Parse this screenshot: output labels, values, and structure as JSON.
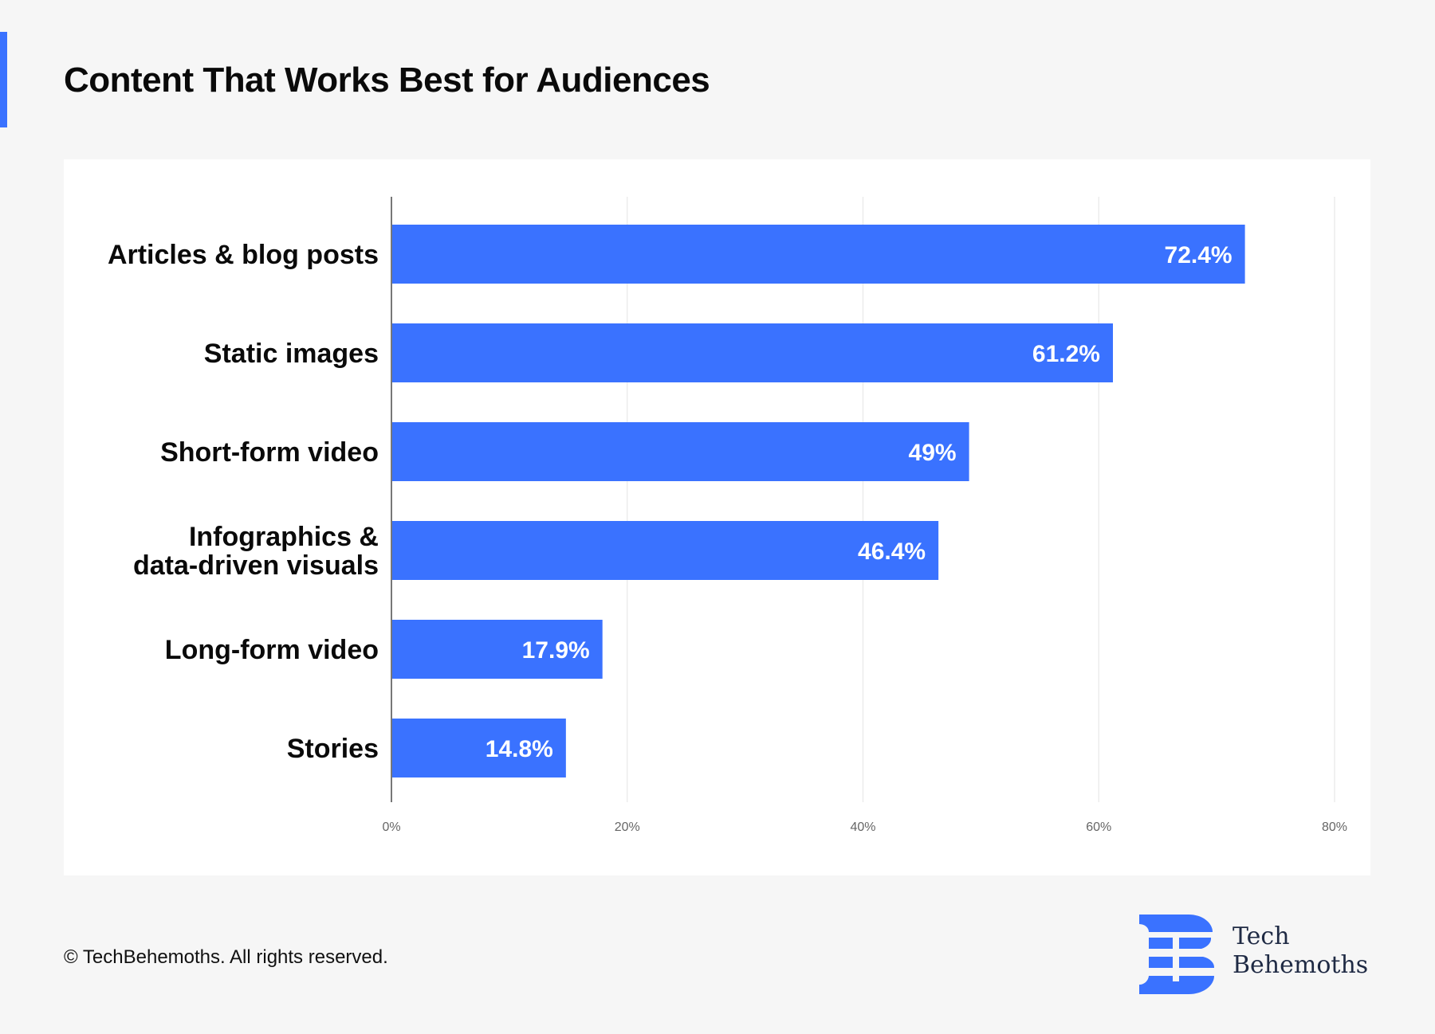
{
  "title": "Content That Works Best for Audiences",
  "footer": "© TechBehemoths. All rights reserved.",
  "logo": {
    "line1": "Tech",
    "line2": "Behemoths"
  },
  "colors": {
    "bar": "#3a72ff",
    "accent": "#3a72ff",
    "logo_text": "#1f2a44"
  },
  "chart_data": {
    "type": "bar",
    "orientation": "horizontal",
    "categories": [
      "Articles & blog posts",
      "Static images",
      "Short-form video",
      "Infographics & data-driven visuals",
      "Long-form video",
      "Stories"
    ],
    "category_lines": [
      [
        "Articles & blog posts"
      ],
      [
        "Static images"
      ],
      [
        "Short-form video"
      ],
      [
        "Infographics &",
        "data-driven visuals"
      ],
      [
        "Long-form video"
      ],
      [
        "Stories"
      ]
    ],
    "values": [
      72.4,
      61.2,
      49,
      46.4,
      17.9,
      14.8
    ],
    "data_labels": [
      "72.4%",
      "61.2%",
      "49%",
      "46.4%",
      "17.9%",
      "14.8%"
    ],
    "xlim": [
      0,
      80
    ],
    "xticks": [
      0,
      20,
      40,
      60,
      80
    ],
    "xtick_labels": [
      "0%",
      "20%",
      "40%",
      "60%",
      "80%"
    ],
    "grid": true
  }
}
